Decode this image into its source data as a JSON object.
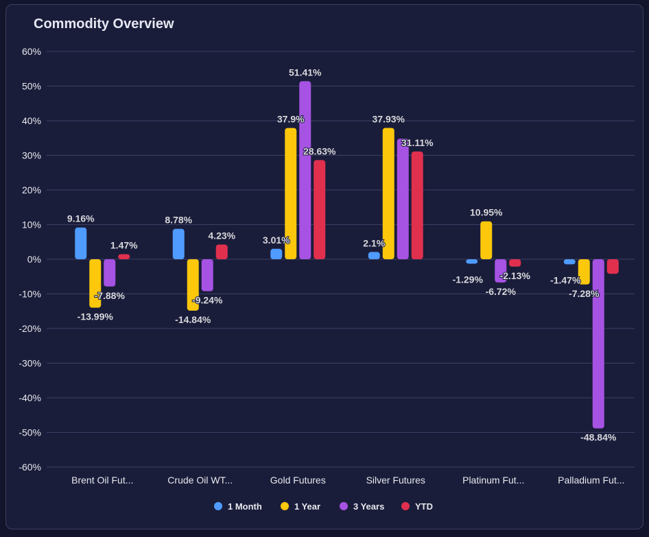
{
  "card": {
    "title": "Commodity Overview"
  },
  "chart_data": {
    "type": "bar",
    "title": "Commodity Overview",
    "categories": [
      "Brent Oil Fut...",
      "Crude Oil WT...",
      "Gold Futures",
      "Silver Futures",
      "Platinum Fut...",
      "Palladium Fut..."
    ],
    "series": [
      {
        "name": "1 Month",
        "color": "#4f9bff",
        "values": [
          9.16,
          8.78,
          3.01,
          2.1,
          -1.29,
          -1.47
        ],
        "labels": [
          "9.16%",
          "8.78%",
          "3.01%",
          "2.1%",
          "-1.29%",
          "-1.47%"
        ]
      },
      {
        "name": "1 Year",
        "color": "#fdc70c",
        "values": [
          -13.99,
          -14.84,
          37.9,
          37.93,
          10.95,
          -7.28
        ],
        "labels": [
          "-13.99%",
          "-14.84%",
          "37.9%",
          "37.93%",
          "10.95%",
          "-7.28%"
        ]
      },
      {
        "name": "3 Years",
        "color": "#a652e3",
        "values": [
          -7.88,
          -9.24,
          51.41,
          34.8,
          -6.72,
          -48.84
        ],
        "labels": [
          "-7.88%",
          "-9.24%",
          "51.41%",
          null,
          "-6.72%",
          "-48.84%"
        ]
      },
      {
        "name": "YTD",
        "color": "#e0304e",
        "values": [
          1.47,
          4.23,
          28.63,
          31.11,
          -2.13,
          -4.2
        ],
        "labels": [
          "1.47%",
          "4.23%",
          "28.63%",
          "31.11%",
          "-2.13%",
          null
        ]
      }
    ],
    "yticks": [
      "60%",
      "50%",
      "40%",
      "30%",
      "20%",
      "10%",
      "0%",
      "-10%",
      "-20%",
      "-30%",
      "-40%",
      "-50%",
      "-60%"
    ],
    "ylim": [
      -60,
      60
    ],
    "xlabel": "",
    "ylabel": "",
    "grid": true,
    "legend": "bottom-center"
  }
}
